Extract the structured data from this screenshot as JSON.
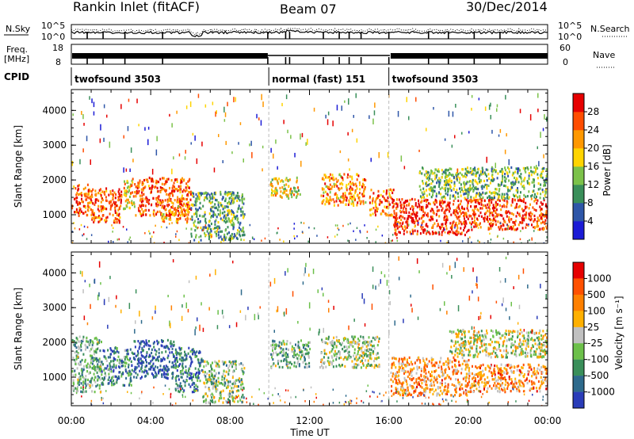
{
  "header": {
    "station": "Rankin Inlet (fitACF)",
    "beam": "Beam 07",
    "date": "30/Dec/2014"
  },
  "noise_panel": {
    "left_label": "N.Sky",
    "right_label": "N.Search",
    "ticks": [
      "10^5",
      "10^0"
    ],
    "right_ticks": [
      "10^5",
      "10^0"
    ]
  },
  "freq_panel": {
    "left_label": "Freq.",
    "left_unit": "[MHz]",
    "left_ticks": [
      "18",
      "8"
    ],
    "right_label": "Nave",
    "right_ticks": [
      "60",
      "0"
    ]
  },
  "cpid_panel": {
    "label": "CPID",
    "segments": [
      {
        "name": "twofsound 3503",
        "start_h": 0,
        "end_h": 9.95
      },
      {
        "name": "normal (fast) 151",
        "start_h": 9.95,
        "end_h": 16.0
      },
      {
        "name": "twofsound 3503",
        "start_h": 16.0,
        "end_h": 24.0
      }
    ]
  },
  "colors": {
    "power_scale": [
      "#1b1bd6",
      "#2e56a8",
      "#3a8f5a",
      "#7cc24a",
      "#ffd400",
      "#ff9800",
      "#ff4d00",
      "#e60000"
    ],
    "velocity_scale": [
      "#2a3cb8",
      "#2e6a8c",
      "#3a8f5a",
      "#6cc04a",
      "#c0c0c0",
      "#ffb000",
      "#ff8000",
      "#ff5000",
      "#e60000"
    ]
  },
  "chart_data": [
    {
      "type": "heatmap",
      "name": "power",
      "xlabel": "",
      "ylabel": "Slant Range [km]",
      "xlim": [
        0,
        24
      ],
      "ylim": [
        180,
        4600
      ],
      "yticks": [
        1000,
        2000,
        3000,
        4000
      ],
      "colorbar": {
        "label": "Power [dB]",
        "ticks": [
          4,
          8,
          12,
          16,
          20,
          24,
          28
        ],
        "range": [
          0,
          32
        ]
      },
      "regions": [
        {
          "x": [
            0.0,
            1.0
          ],
          "range_km": [
            1000,
            1900
          ],
          "level": 0.78
        },
        {
          "x": [
            1.0,
            2.5
          ],
          "range_km": [
            800,
            1800
          ],
          "level": 0.8
        },
        {
          "x": [
            2.6,
            3.2
          ],
          "range_km": [
            1200,
            2100
          ],
          "level": 0.6
        },
        {
          "x": [
            3.2,
            6.0
          ],
          "range_km": [
            1000,
            2100
          ],
          "level": 0.82
        },
        {
          "x": [
            4.5,
            6.0
          ],
          "range_km": [
            800,
            1300
          ],
          "level": 0.7
        },
        {
          "x": [
            6.0,
            8.7
          ],
          "range_km": [
            300,
            1700
          ],
          "level": 0.35
        },
        {
          "x": [
            10.0,
            11.5
          ],
          "range_km": [
            1500,
            2100
          ],
          "level": 0.55
        },
        {
          "x": [
            12.5,
            14.8
          ],
          "range_km": [
            1300,
            2200
          ],
          "level": 0.7
        },
        {
          "x": [
            15.0,
            16.2
          ],
          "range_km": [
            1000,
            1800
          ],
          "level": 0.75
        },
        {
          "x": [
            16.2,
            20.0
          ],
          "range_km": [
            450,
            1500
          ],
          "level": 0.88
        },
        {
          "x": [
            20.0,
            24.0
          ],
          "range_km": [
            600,
            1500
          ],
          "level": 0.85
        },
        {
          "x": [
            17.5,
            24.0
          ],
          "range_km": [
            1500,
            2400
          ],
          "level": 0.4
        }
      ]
    },
    {
      "type": "heatmap",
      "name": "velocity",
      "xlabel": "Time UT",
      "ylabel": "Slant Range [km]",
      "xlim": [
        0,
        24
      ],
      "xticks": [
        "00:00",
        "04:00",
        "08:00",
        "12:00",
        "16:00",
        "20:00",
        "00:00"
      ],
      "ylim": [
        180,
        4600
      ],
      "yticks": [
        1000,
        2000,
        3000,
        4000
      ],
      "colorbar": {
        "label": "Velocity [m s⁻¹]",
        "ticks": [
          1000,
          500,
          100,
          25,
          -25,
          -100,
          -500,
          -1000
        ]
      },
      "regions": [
        {
          "x": [
            0.0,
            1.5
          ],
          "range_km": [
            600,
            2200
          ],
          "level": 0.35
        },
        {
          "x": [
            1.5,
            3.0
          ],
          "range_km": [
            800,
            1900
          ],
          "level": 0.25
        },
        {
          "x": [
            3.0,
            5.2
          ],
          "range_km": [
            1000,
            2100
          ],
          "level": 0.1
        },
        {
          "x": [
            5.2,
            6.6
          ],
          "range_km": [
            600,
            1900
          ],
          "level": 0.2
        },
        {
          "x": [
            6.6,
            8.7
          ],
          "range_km": [
            300,
            1500
          ],
          "level": 0.4
        },
        {
          "x": [
            10.0,
            12.0
          ],
          "range_km": [
            1300,
            2100
          ],
          "level": 0.35
        },
        {
          "x": [
            12.5,
            15.5
          ],
          "range_km": [
            1300,
            2200
          ],
          "level": 0.45
        },
        {
          "x": [
            16.0,
            20.0
          ],
          "range_km": [
            500,
            1600
          ],
          "level": 0.68
        },
        {
          "x": [
            20.0,
            24.0
          ],
          "range_km": [
            600,
            1400
          ],
          "level": 0.7
        },
        {
          "x": [
            19.0,
            24.0
          ],
          "range_km": [
            1600,
            2400
          ],
          "level": 0.5
        }
      ]
    }
  ]
}
